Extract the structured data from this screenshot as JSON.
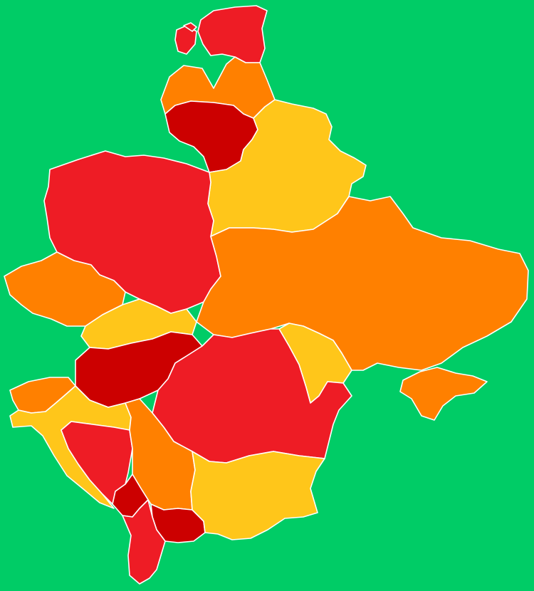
{
  "map": {
    "background_color": "#00CC66",
    "border_color": "#FFFFFF",
    "palette": {
      "dark_red": "#CC0000",
      "red": "#EE1C25",
      "orange": "#FF8000",
      "yellow": "#FFC61A"
    },
    "regions": [
      {
        "id": "estonia",
        "color_key": "red"
      },
      {
        "id": "latvia",
        "color_key": "orange"
      },
      {
        "id": "lithuania",
        "color_key": "dark_red"
      },
      {
        "id": "belarus",
        "color_key": "yellow"
      },
      {
        "id": "poland",
        "color_key": "red"
      },
      {
        "id": "czechia",
        "color_key": "orange"
      },
      {
        "id": "slovakia",
        "color_key": "yellow"
      },
      {
        "id": "ukraine",
        "color_key": "orange"
      },
      {
        "id": "crimea",
        "color_key": "orange"
      },
      {
        "id": "moldova",
        "color_key": "yellow"
      },
      {
        "id": "hungary",
        "color_key": "dark_red"
      },
      {
        "id": "romania",
        "color_key": "red"
      },
      {
        "id": "slovenia",
        "color_key": "orange"
      },
      {
        "id": "croatia",
        "color_key": "yellow"
      },
      {
        "id": "bosnia",
        "color_key": "red"
      },
      {
        "id": "serbia",
        "color_key": "orange"
      },
      {
        "id": "montenegro",
        "color_key": "dark_red"
      },
      {
        "id": "kosovo",
        "color_key": "dark_red"
      },
      {
        "id": "albania",
        "color_key": "red"
      },
      {
        "id": "bulgaria",
        "color_key": "yellow"
      }
    ]
  }
}
